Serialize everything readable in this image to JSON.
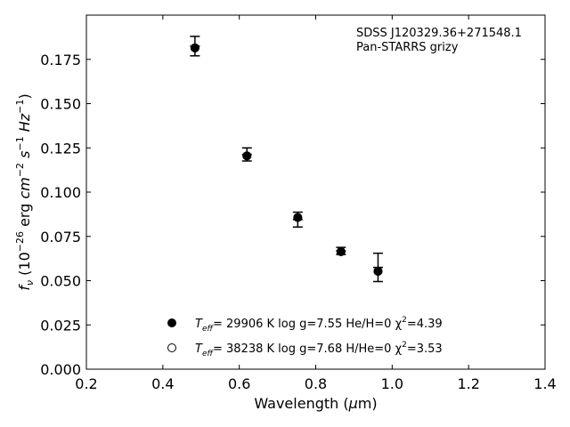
{
  "chart_data": {
    "type": "scatter",
    "title": "",
    "annotation_lines": [
      "SDSS J120329.36+271548.1",
      "Pan-STARRS grizy"
    ],
    "xlabel": "Wavelength (μm)",
    "ylabel": "f_ν (10^-26 erg cm^-2 s^-1 Hz^-1)",
    "xlim": [
      0.2,
      1.4
    ],
    "ylim": [
      0.0,
      0.2
    ],
    "xticks": [
      0.2,
      0.4,
      0.6,
      0.8,
      1.0,
      1.2,
      1.4
    ],
    "xtick_labels": [
      "0.2",
      "0.4",
      "0.6",
      "0.8",
      "1.0",
      "1.2",
      "1.4"
    ],
    "yticks": [
      0.0,
      0.025,
      0.05,
      0.075,
      0.1,
      0.125,
      0.15,
      0.175
    ],
    "ytick_labels": [
      "0.000",
      "0.025",
      "0.050",
      "0.075",
      "0.100",
      "0.125",
      "0.150",
      "0.175"
    ],
    "grid": false,
    "legend_placement": "lower-center",
    "observed": {
      "x": [
        0.484,
        0.62,
        0.753,
        0.866,
        0.963
      ],
      "y": [
        0.1825,
        0.1213,
        0.0845,
        0.0668,
        0.0575
      ],
      "yerr": [
        0.0055,
        0.0037,
        0.0042,
        0.002,
        0.008
      ]
    },
    "series": [
      {
        "marker": "filled",
        "label_parts": [
          "T",
          "eff",
          "= 29906 K  log g=7.55  He/H=0  χ",
          "2",
          "=4.39"
        ],
        "x": [
          0.484,
          0.62,
          0.753,
          0.866,
          0.963
        ],
        "y": [
          0.1815,
          0.1205,
          0.0857,
          0.0664,
          0.0553
        ]
      },
      {
        "marker": "open",
        "label_parts": [
          "T",
          "eff",
          "= 38238 K  log g=7.68  H/He=0  χ",
          "2",
          "=3.53"
        ],
        "x": [
          0.484,
          0.62,
          0.753,
          0.866,
          0.963
        ],
        "y": [
          0.1815,
          0.1205,
          0.0857,
          0.0664,
          0.0553
        ]
      }
    ]
  }
}
